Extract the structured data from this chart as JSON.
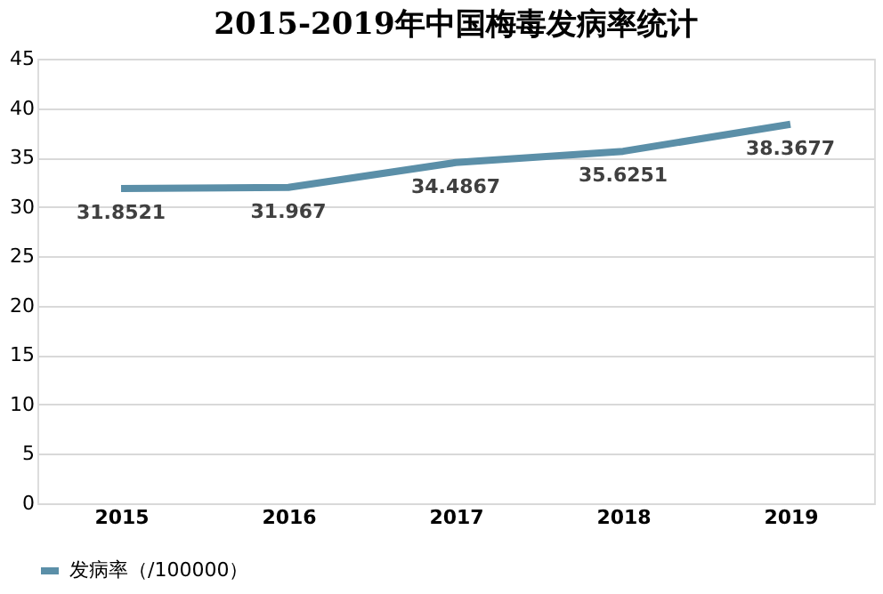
{
  "chart_data": {
    "type": "line",
    "title": "2015-2019年中国梅毒发病率统计",
    "categories": [
      "2015",
      "2016",
      "2017",
      "2018",
      "2019"
    ],
    "series": [
      {
        "name": "发病率（/100000）",
        "color": "#5b8fa8",
        "values": [
          31.8521,
          31.967,
          34.4867,
          35.6251,
          38.3677
        ]
      }
    ],
    "ylim": [
      0,
      45
    ],
    "yticks": [
      0,
      5,
      10,
      15,
      20,
      25,
      30,
      35,
      40,
      45
    ],
    "grid": "y",
    "legend": "bottom",
    "data_labels": true,
    "marker": "none",
    "line_style": "solid"
  }
}
